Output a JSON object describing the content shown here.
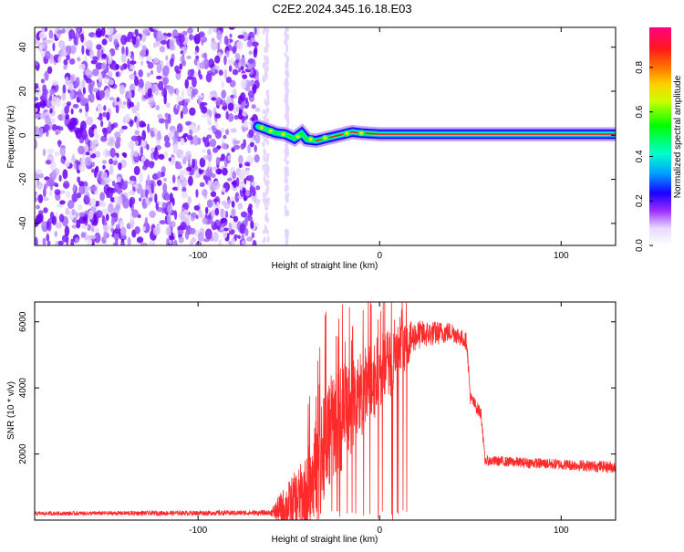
{
  "title": "C2E2.2024.345.16.18.E03",
  "chart_data": [
    {
      "type": "heatmap",
      "xlabel": "Height of straight line (km)",
      "ylabel": "Frequency (Hz)",
      "xlim": [
        -190,
        130
      ],
      "ylim": [
        -50,
        49
      ],
      "xticks": [
        -100,
        0,
        100
      ],
      "yticks": [
        -40,
        -20,
        0,
        20,
        40
      ],
      "colorbar": {
        "label": "Normalized spectral amplitude",
        "range": [
          0,
          0.98
        ],
        "ticks": [
          "0.0",
          "0.2",
          "0.4",
          "0.6",
          "0.8"
        ],
        "colors": [
          "#ffffff",
          "#e8d8ff",
          "#9b2cff",
          "#1a00ff",
          "#00a0ff",
          "#00ffcc",
          "#00ff00",
          "#c8ff00",
          "#ffd000",
          "#ff7000",
          "#ff1a1a",
          "#ff0080"
        ]
      },
      "noise_region_x": [
        -190,
        -67
      ],
      "gaps_x": [
        [
          -64,
          -57
        ],
        [
          -52,
          -48
        ],
        [
          -44,
          130
        ]
      ],
      "signal_trace": [
        {
          "x": -67,
          "y": 4
        },
        {
          "x": -62,
          "y": 2.5
        },
        {
          "x": -57,
          "y": 1
        },
        {
          "x": -52,
          "y": 0.5
        },
        {
          "x": -47,
          "y": -1.5
        },
        {
          "x": -43,
          "y": 1
        },
        {
          "x": -40,
          "y": -2
        },
        {
          "x": -35,
          "y": -2.5
        },
        {
          "x": -30,
          "y": -1.5
        },
        {
          "x": -25,
          "y": -0.5
        },
        {
          "x": -20,
          "y": 0.5
        },
        {
          "x": -15,
          "y": 1.5
        },
        {
          "x": -10,
          "y": 1
        },
        {
          "x": 0,
          "y": 0.5
        },
        {
          "x": 130,
          "y": 0.5
        }
      ]
    },
    {
      "type": "line",
      "xlabel": "Height of straight line (km)",
      "ylabel": "SNR (10 * v/v)",
      "xlim": [
        -190,
        130
      ],
      "ylim": [
        0,
        6600
      ],
      "xticks": [
        -100,
        0,
        100
      ],
      "yticks": [
        2000,
        4000,
        6000
      ],
      "color": "#ff2a2a",
      "envelope": [
        {
          "x": -190,
          "base": 200,
          "noise": 60
        },
        {
          "x": -60,
          "base": 220,
          "noise": 80
        },
        {
          "x": -55,
          "base": 300,
          "noise": 500
        },
        {
          "x": -40,
          "base": 800,
          "noise": 1200
        },
        {
          "x": -30,
          "base": 2500,
          "noise": 1800
        },
        {
          "x": -15,
          "base": 3500,
          "noise": 1500
        },
        {
          "x": 0,
          "base": 4400,
          "noise": 1200
        },
        {
          "x": 10,
          "base": 5000,
          "noise": 900
        },
        {
          "x": 20,
          "base": 5600,
          "noise": 450
        },
        {
          "x": 40,
          "base": 5700,
          "noise": 300
        },
        {
          "x": 48,
          "base": 5400,
          "noise": 250
        },
        {
          "x": 50,
          "base": 3700,
          "noise": 200
        },
        {
          "x": 56,
          "base": 3200,
          "noise": 200
        },
        {
          "x": 58,
          "base": 1800,
          "noise": 150
        },
        {
          "x": 130,
          "base": 1600,
          "noise": 180
        }
      ]
    }
  ]
}
